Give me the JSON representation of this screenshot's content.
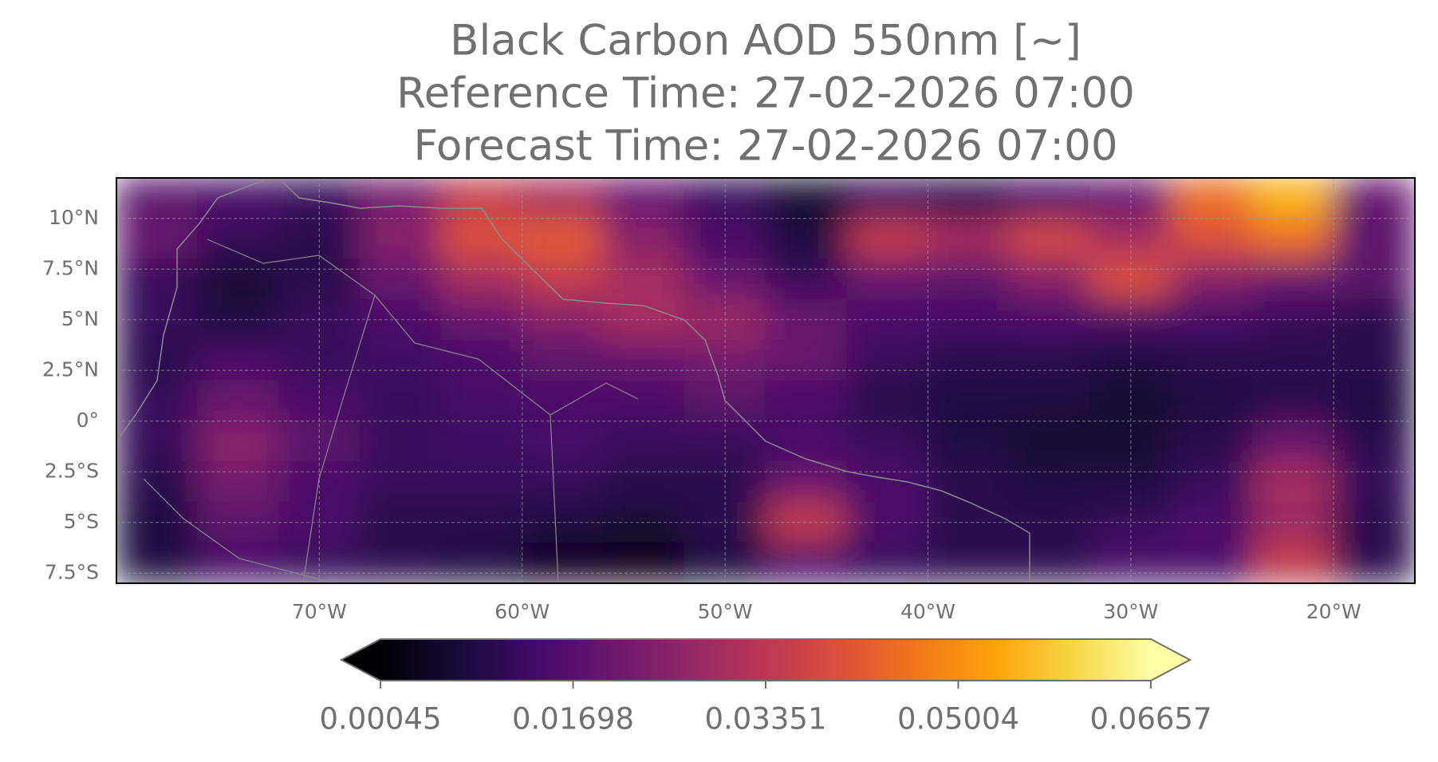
{
  "chart_data": {
    "type": "heatmap",
    "title": [
      "Black Carbon AOD 550nm [~]",
      "Reference Time: 27-02-2026 07:00",
      "Forecast Time: 27-02-2026 07:00"
    ],
    "colormap": "inferno",
    "x": [
      -78,
      -74,
      -70,
      -66,
      -62,
      -58,
      -54,
      -50,
      -46,
      -42,
      -38,
      -34,
      -30,
      -26,
      -22,
      -18
    ],
    "y": [
      11,
      9,
      7,
      5,
      3,
      1,
      -1,
      -3,
      -5,
      -7
    ],
    "values": [
      [
        0.018,
        0.015,
        0.012,
        0.022,
        0.035,
        0.03,
        0.02,
        0.012,
        0.006,
        0.012,
        0.01,
        0.015,
        0.02,
        0.045,
        0.055,
        0.02
      ],
      [
        0.02,
        0.012,
        0.01,
        0.025,
        0.04,
        0.042,
        0.025,
        0.015,
        0.008,
        0.035,
        0.03,
        0.038,
        0.03,
        0.04,
        0.045,
        0.018
      ],
      [
        0.012,
        0.006,
        0.01,
        0.02,
        0.03,
        0.035,
        0.03,
        0.02,
        0.012,
        0.02,
        0.018,
        0.025,
        0.04,
        0.025,
        0.02,
        0.018
      ],
      [
        0.012,
        0.008,
        0.012,
        0.015,
        0.02,
        0.025,
        0.03,
        0.028,
        0.02,
        0.015,
        0.014,
        0.015,
        0.015,
        0.014,
        0.012,
        0.01
      ],
      [
        0.01,
        0.015,
        0.012,
        0.013,
        0.015,
        0.018,
        0.02,
        0.022,
        0.02,
        0.012,
        0.01,
        0.01,
        0.008,
        0.01,
        0.01,
        0.01
      ],
      [
        0.012,
        0.02,
        0.015,
        0.012,
        0.014,
        0.015,
        0.015,
        0.018,
        0.015,
        0.01,
        0.008,
        0.008,
        0.006,
        0.008,
        0.01,
        0.008
      ],
      [
        0.012,
        0.025,
        0.018,
        0.012,
        0.013,
        0.014,
        0.012,
        0.012,
        0.014,
        0.012,
        0.008,
        0.006,
        0.006,
        0.01,
        0.02,
        0.01
      ],
      [
        0.01,
        0.022,
        0.015,
        0.012,
        0.012,
        0.012,
        0.01,
        0.01,
        0.02,
        0.015,
        0.01,
        0.008,
        0.008,
        0.012,
        0.03,
        0.012
      ],
      [
        0.008,
        0.018,
        0.015,
        0.01,
        0.01,
        0.008,
        0.006,
        0.01,
        0.035,
        0.015,
        0.01,
        0.01,
        0.012,
        0.015,
        0.028,
        0.01
      ],
      [
        0.008,
        0.015,
        0.012,
        0.01,
        0.008,
        0.004,
        0.003,
        0.008,
        0.015,
        0.012,
        0.01,
        0.01,
        0.015,
        0.015,
        0.035,
        0.01
      ]
    ],
    "xlim": [
      -80,
      -16
    ],
    "ylim": [
      -8,
      12
    ],
    "xticks": [
      {
        "value": -70,
        "label": "70°W"
      },
      {
        "value": -60,
        "label": "60°W"
      },
      {
        "value": -50,
        "label": "50°W"
      },
      {
        "value": -40,
        "label": "40°W"
      },
      {
        "value": -30,
        "label": "30°W"
      },
      {
        "value": -20,
        "label": "20°W"
      }
    ],
    "yticks": [
      {
        "value": 10,
        "label": "10°N"
      },
      {
        "value": 7.5,
        "label": "7.5°N"
      },
      {
        "value": 5,
        "label": "5°N"
      },
      {
        "value": 2.5,
        "label": "2.5°N"
      },
      {
        "value": 0,
        "label": "0°"
      },
      {
        "value": -2.5,
        "label": "2.5°S"
      },
      {
        "value": -5,
        "label": "5°S"
      },
      {
        "value": -7.5,
        "label": "7.5°S"
      }
    ],
    "clim": [
      0.00045,
      0.06657
    ],
    "cticks": [
      0.00045,
      0.01698,
      0.03351,
      0.05004,
      0.06657
    ],
    "grid": true
  }
}
